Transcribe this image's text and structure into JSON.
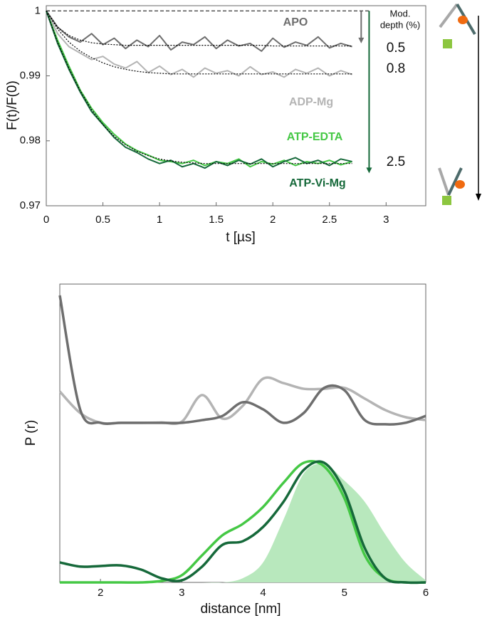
{
  "chart_data": [
    {
      "type": "line",
      "xlabel": "t [µs]",
      "ylabel": "F(t)/F(0)",
      "xlim": [
        0,
        3.35
      ],
      "ylim": [
        0.97,
        1.0008
      ],
      "xticks": [
        0,
        0.5,
        1,
        1.5,
        2,
        2.5,
        3
      ],
      "yticks": [
        0.97,
        0.98,
        0.99,
        1
      ],
      "reference_line": 1,
      "x": [
        0,
        0.1,
        0.2,
        0.3,
        0.4,
        0.5,
        0.6,
        0.7,
        0.8,
        0.9,
        1,
        1.1,
        1.2,
        1.3,
        1.4,
        1.5,
        1.6,
        1.7,
        1.8,
        1.9,
        2,
        2.1,
        2.2,
        2.3,
        2.4,
        2.5,
        2.6,
        2.7
      ],
      "series": [
        {
          "name": "ADP-Mg",
          "color": "#b4b4b4",
          "values": [
            1.0,
            0.9965,
            0.9945,
            0.9935,
            0.9925,
            0.993,
            0.9918,
            0.9912,
            0.9922,
            0.9905,
            0.9915,
            0.9902,
            0.991,
            0.9898,
            0.9912,
            0.9904,
            0.9908,
            0.99,
            0.9914,
            0.9902,
            0.9906,
            0.9898,
            0.991,
            0.9904,
            0.9912,
            0.99,
            0.9908,
            0.9902
          ]
        },
        {
          "name": "APO",
          "color": "#6e6e6e",
          "values": [
            1.0,
            0.9975,
            0.996,
            0.9952,
            0.9965,
            0.9948,
            0.9958,
            0.9942,
            0.9955,
            0.9945,
            0.9962,
            0.994,
            0.9952,
            0.9948,
            0.996,
            0.9942,
            0.9955,
            0.9946,
            0.995,
            0.9938,
            0.9958,
            0.9944,
            0.9952,
            0.9947,
            0.996,
            0.9943,
            0.995,
            0.9945
          ]
        },
        {
          "name": "ATP-EDTA",
          "color": "#45c845",
          "values": [
            1.0,
            0.9955,
            0.9915,
            0.9878,
            0.985,
            0.9828,
            0.981,
            0.9795,
            0.9785,
            0.9778,
            0.977,
            0.9768,
            0.9765,
            0.977,
            0.9762,
            0.9768,
            0.9765,
            0.9772,
            0.976,
            0.9768,
            0.9764,
            0.977,
            0.9762,
            0.9768,
            0.9765,
            0.977,
            0.9763,
            0.9768
          ]
        },
        {
          "name": "ATP-Vi-Mg",
          "color": "#16693a",
          "values": [
            1.0,
            0.995,
            0.991,
            0.9875,
            0.9845,
            0.9825,
            0.9805,
            0.979,
            0.9782,
            0.9772,
            0.9765,
            0.977,
            0.976,
            0.9765,
            0.9758,
            0.9768,
            0.9762,
            0.977,
            0.9764,
            0.9772,
            0.976,
            0.9768,
            0.9774,
            0.9765,
            0.977,
            0.9762,
            0.9772,
            0.9768
          ]
        },
        {
          "color": "#000000",
          "dash": true,
          "values": [
            1.0,
            0.9975,
            0.9962,
            0.9955,
            0.9951,
            0.9949,
            0.9948,
            0.9947,
            0.9947,
            0.9947,
            0.9947,
            0.9947,
            0.9947,
            0.9947,
            0.9947,
            0.9947,
            0.9947,
            0.9947,
            0.9947,
            0.9947,
            0.9946,
            0.9946,
            0.9946,
            0.9946,
            0.9946,
            0.9946,
            0.9946,
            0.9946
          ]
        },
        {
          "color": "#000000",
          "dash": true,
          "values": [
            1.0,
            0.9972,
            0.9952,
            0.9938,
            0.9928,
            0.992,
            0.9914,
            0.991,
            0.9907,
            0.9905,
            0.9904,
            0.9903,
            0.9903,
            0.9903,
            0.9903,
            0.9903,
            0.9903,
            0.9903,
            0.9903,
            0.9903,
            0.9903,
            0.9903,
            0.9903,
            0.9903,
            0.9903,
            0.9903,
            0.9903,
            0.9903
          ]
        },
        {
          "color": "#000000",
          "dash": true,
          "values": [
            1.0,
            0.9952,
            0.9912,
            0.9877,
            0.9848,
            0.9825,
            0.9807,
            0.9794,
            0.9784,
            0.9777,
            0.9772,
            0.9769,
            0.9767,
            0.9766,
            0.9765,
            0.9765,
            0.9765,
            0.9765,
            0.9765,
            0.9765,
            0.9765,
            0.9765,
            0.9765,
            0.9765,
            0.9765,
            0.9765,
            0.9765,
            0.9765
          ]
        }
      ],
      "modulation_depth": {
        "title": [
          "Mod.",
          "depth (%)"
        ],
        "values": [
          0.5,
          0.8,
          2.5
        ],
        "arrow_colors": [
          "#6e6e6e",
          null,
          "#16693a"
        ]
      }
    },
    {
      "type": "line",
      "smooth": true,
      "xlabel": "distance [nm]",
      "ylabel": "P (r)",
      "xlim": [
        1.5,
        6
      ],
      "ylim": [
        0,
        1
      ],
      "xticks": [
        2,
        3,
        4,
        5,
        6
      ],
      "x": [
        1.5,
        1.75,
        2,
        2.25,
        2.5,
        2.75,
        3,
        3.25,
        3.5,
        3.75,
        4,
        4.25,
        4.5,
        4.75,
        5,
        5.25,
        5.5,
        5.75,
        6
      ],
      "series": [
        {
          "style": "area",
          "color": "#b8e8bd",
          "values": [
            0,
            0,
            0,
            0,
            0,
            0,
            0,
            0,
            0,
            0.014,
            0.067,
            0.21,
            0.365,
            0.396,
            0.341,
            0.27,
            0.162,
            0.067,
            0.007
          ]
        },
        {
          "color": "#b4b4b4",
          "values": [
            0.64,
            0.568,
            0.535,
            0.535,
            0.535,
            0.536,
            0.539,
            0.628,
            0.549,
            0.592,
            0.683,
            0.668,
            0.649,
            0.649,
            0.652,
            0.616,
            0.578,
            0.554,
            0.544
          ]
        },
        {
          "color": "#6e6e6e",
          "values": [
            0.962,
            0.58,
            0.535,
            0.535,
            0.535,
            0.535,
            0.535,
            0.544,
            0.558,
            0.604,
            0.58,
            0.535,
            0.568,
            0.652,
            0.644,
            0.544,
            0.53,
            0.535,
            0.558
          ]
        },
        {
          "color": "#45c845",
          "values": [
            0,
            0,
            0,
            0,
            0,
            0.005,
            0.024,
            0.091,
            0.158,
            0.196,
            0.253,
            0.334,
            0.401,
            0.389,
            0.282,
            0.091,
            0.014,
            0,
            0
          ]
        },
        {
          "color": "#16693a",
          "values": [
            0.067,
            0.053,
            0.055,
            0.057,
            0.043,
            0.014,
            0.007,
            0.053,
            0.126,
            0.138,
            0.186,
            0.27,
            0.377,
            0.401,
            0.305,
            0.115,
            0.014,
            0,
            0
          ]
        }
      ]
    }
  ]
}
